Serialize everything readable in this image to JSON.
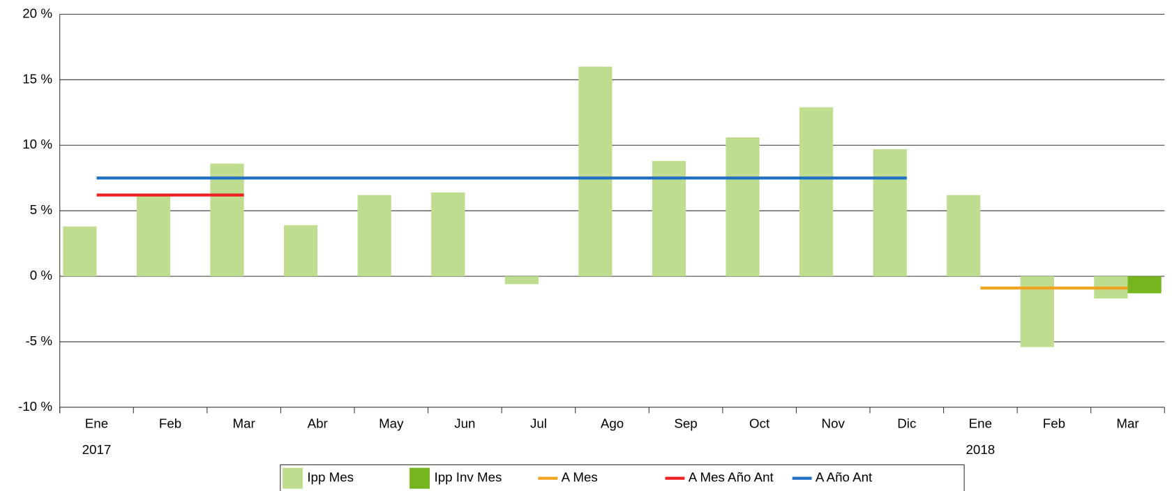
{
  "chart_data": {
    "type": "bar",
    "categories": [
      "Ene",
      "Feb",
      "Mar",
      "Abr",
      "May",
      "Jun",
      "Jul",
      "Ago",
      "Sep",
      "Oct",
      "Nov",
      "Dic",
      "Ene",
      "Feb",
      "Mar"
    ],
    "category_groups": [
      "2017",
      null,
      null,
      null,
      null,
      null,
      null,
      null,
      null,
      null,
      null,
      null,
      "2018",
      null,
      null
    ],
    "series": [
      {
        "name": "Ipp Mes",
        "type": "bar",
        "color": "#bedd8f",
        "values": [
          3.8,
          6.2,
          8.6,
          3.9,
          6.2,
          6.4,
          -0.6,
          16.0,
          8.8,
          10.6,
          12.9,
          9.7,
          6.2,
          -5.4,
          -1.7
        ]
      },
      {
        "name": "Ipp Inv Mes",
        "type": "bar",
        "color": "#77b51f",
        "values": [
          null,
          null,
          null,
          null,
          null,
          null,
          null,
          null,
          null,
          null,
          null,
          null,
          null,
          null,
          -1.3
        ]
      },
      {
        "name": "A Mes",
        "type": "line",
        "color": "#f0a422",
        "values": [
          null,
          null,
          null,
          null,
          null,
          null,
          null,
          null,
          null,
          null,
          null,
          null,
          -0.9,
          -0.9,
          -0.9
        ]
      },
      {
        "name": "A Mes Año Ant",
        "type": "line",
        "color": "#ee2222",
        "values": [
          6.2,
          6.2,
          6.2,
          null,
          null,
          null,
          null,
          null,
          null,
          null,
          null,
          null,
          null,
          null,
          null
        ]
      },
      {
        "name": "A Año Ant",
        "type": "line",
        "color": "#1f6fc5",
        "values": [
          7.5,
          7.5,
          7.5,
          7.5,
          7.5,
          7.5,
          7.5,
          7.5,
          7.5,
          7.5,
          7.5,
          7.5,
          null,
          null,
          null
        ]
      }
    ],
    "ylim": [
      -10,
      20
    ],
    "yticks": [
      {
        "value": -10,
        "label": "-10 %"
      },
      {
        "value": -5,
        "label": "-5 %"
      },
      {
        "value": 0,
        "label": "0 %"
      },
      {
        "value": 5,
        "label": "5 %"
      },
      {
        "value": 10,
        "label": "10 %"
      },
      {
        "value": 15,
        "label": "15 %"
      },
      {
        "value": 20,
        "label": "20 %"
      }
    ],
    "grid": true,
    "legend": "bottom"
  }
}
